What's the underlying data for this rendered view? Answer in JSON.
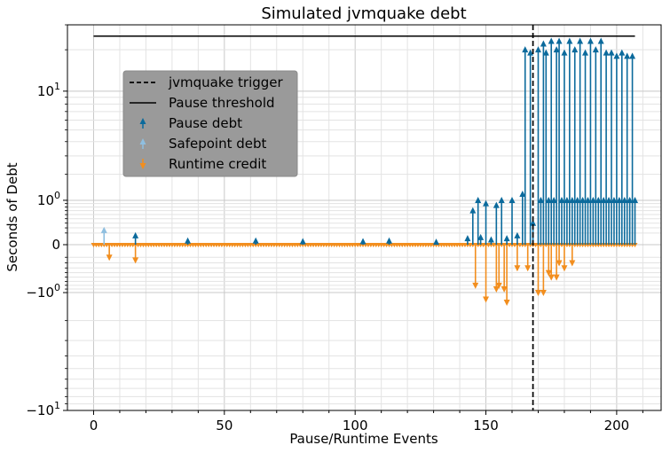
{
  "chart_data": {
    "type": "scatter",
    "title": "Simulated jvmquake debt",
    "xlabel": "Pause/Runtime Events",
    "ylabel": "Seconds of Debt",
    "xlim": [
      -10,
      217
    ],
    "yscale": "symlog",
    "ylim": [
      -10,
      30
    ],
    "grid": true,
    "legend_position": "upper-left",
    "x_ticks": [
      {
        "value": 0,
        "label": "0"
      },
      {
        "value": 50,
        "label": "50"
      },
      {
        "value": 100,
        "label": "100"
      },
      {
        "value": 150,
        "label": "150"
      },
      {
        "value": 200,
        "label": "200"
      }
    ],
    "y_ticks": [
      {
        "value": 10,
        "base": "10",
        "exp": "1",
        "sign": ""
      },
      {
        "value": 1,
        "base": "10",
        "exp": "0",
        "sign": ""
      },
      {
        "value": 0,
        "base": "0",
        "exp": "",
        "sign": ""
      },
      {
        "value": -1,
        "base": "10",
        "exp": "0",
        "sign": "−"
      },
      {
        "value": -10,
        "base": "10",
        "exp": "1",
        "sign": "−"
      }
    ],
    "legend": [
      {
        "label": "jvmquake trigger",
        "kind": "dashed-line"
      },
      {
        "label": "Pause threshold",
        "kind": "solid-line"
      },
      {
        "label": "Pause debt",
        "kind": "up-marker"
      },
      {
        "label": "Safepoint debt",
        "kind": "up-marker"
      },
      {
        "label": "Runtime credit",
        "kind": "down-marker"
      }
    ],
    "vertical_line": {
      "label": "jvmquake trigger",
      "x": 168
    },
    "horizontal_line": {
      "label": "Pause threshold",
      "y": 25,
      "x_range": [
        0,
        207
      ]
    },
    "series": [
      {
        "name": "Pause debt",
        "color": "#0b6a9c",
        "points": [
          [
            16,
            0.15
          ],
          [
            36,
            0.06
          ],
          [
            62,
            0.06
          ],
          [
            80,
            0.05
          ],
          [
            103,
            0.05
          ],
          [
            113,
            0.06
          ],
          [
            131,
            0.04
          ],
          [
            143,
            0.1
          ],
          [
            145,
            0.7
          ],
          [
            147,
            1.0
          ],
          [
            148,
            0.12
          ],
          [
            150,
            0.9
          ],
          [
            152,
            0.08
          ],
          [
            154,
            0.85
          ],
          [
            156,
            1.0
          ],
          [
            158,
            0.1
          ],
          [
            160,
            1.0
          ],
          [
            162,
            0.15
          ],
          [
            164,
            1.2
          ],
          [
            165,
            20
          ],
          [
            167,
            19
          ],
          [
            168,
            0.4
          ],
          [
            170,
            20
          ],
          [
            171,
            1.0
          ],
          [
            172,
            22
          ],
          [
            173,
            19
          ],
          [
            174,
            1.0
          ],
          [
            175,
            23
          ],
          [
            176,
            1.0
          ],
          [
            177,
            20
          ],
          [
            178,
            23
          ],
          [
            179,
            1.0
          ],
          [
            180,
            19
          ],
          [
            181,
            1.0
          ],
          [
            182,
            23
          ],
          [
            183,
            1.0
          ],
          [
            184,
            20
          ],
          [
            185,
            1.0
          ],
          [
            186,
            23
          ],
          [
            187,
            1.0
          ],
          [
            188,
            19
          ],
          [
            189,
            1.0
          ],
          [
            190,
            23
          ],
          [
            191,
            1.0
          ],
          [
            192,
            20
          ],
          [
            193,
            1.0
          ],
          [
            194,
            23
          ],
          [
            195,
            1.0
          ],
          [
            196,
            19
          ],
          [
            197,
            1.0
          ],
          [
            198,
            19
          ],
          [
            199,
            1.0
          ],
          [
            200,
            18
          ],
          [
            201,
            1.0
          ],
          [
            202,
            19
          ],
          [
            203,
            1.0
          ],
          [
            204,
            18
          ],
          [
            205,
            1.0
          ],
          [
            206,
            18
          ],
          [
            207,
            1.0
          ]
        ]
      },
      {
        "name": "Safepoint debt",
        "color": "#8fbfe0",
        "points": [
          [
            4,
            0.25
          ]
        ]
      },
      {
        "name": "Runtime credit",
        "color": "#f28e1e",
        "points": [
          [
            6,
            -0.2
          ],
          [
            16,
            -0.25
          ],
          [
            146,
            -0.8
          ],
          [
            150,
            -1.2
          ],
          [
            154,
            -0.9
          ],
          [
            155,
            -0.8
          ],
          [
            157,
            -0.9
          ],
          [
            158,
            -1.3
          ],
          [
            162,
            -0.4
          ],
          [
            166,
            -0.4
          ],
          [
            170,
            -1.0
          ],
          [
            172,
            -1.0
          ],
          [
            174,
            -0.5
          ],
          [
            175,
            -0.6
          ],
          [
            177,
            -0.6
          ],
          [
            178,
            -0.3
          ],
          [
            180,
            -0.4
          ],
          [
            183,
            -0.3
          ]
        ]
      }
    ]
  }
}
